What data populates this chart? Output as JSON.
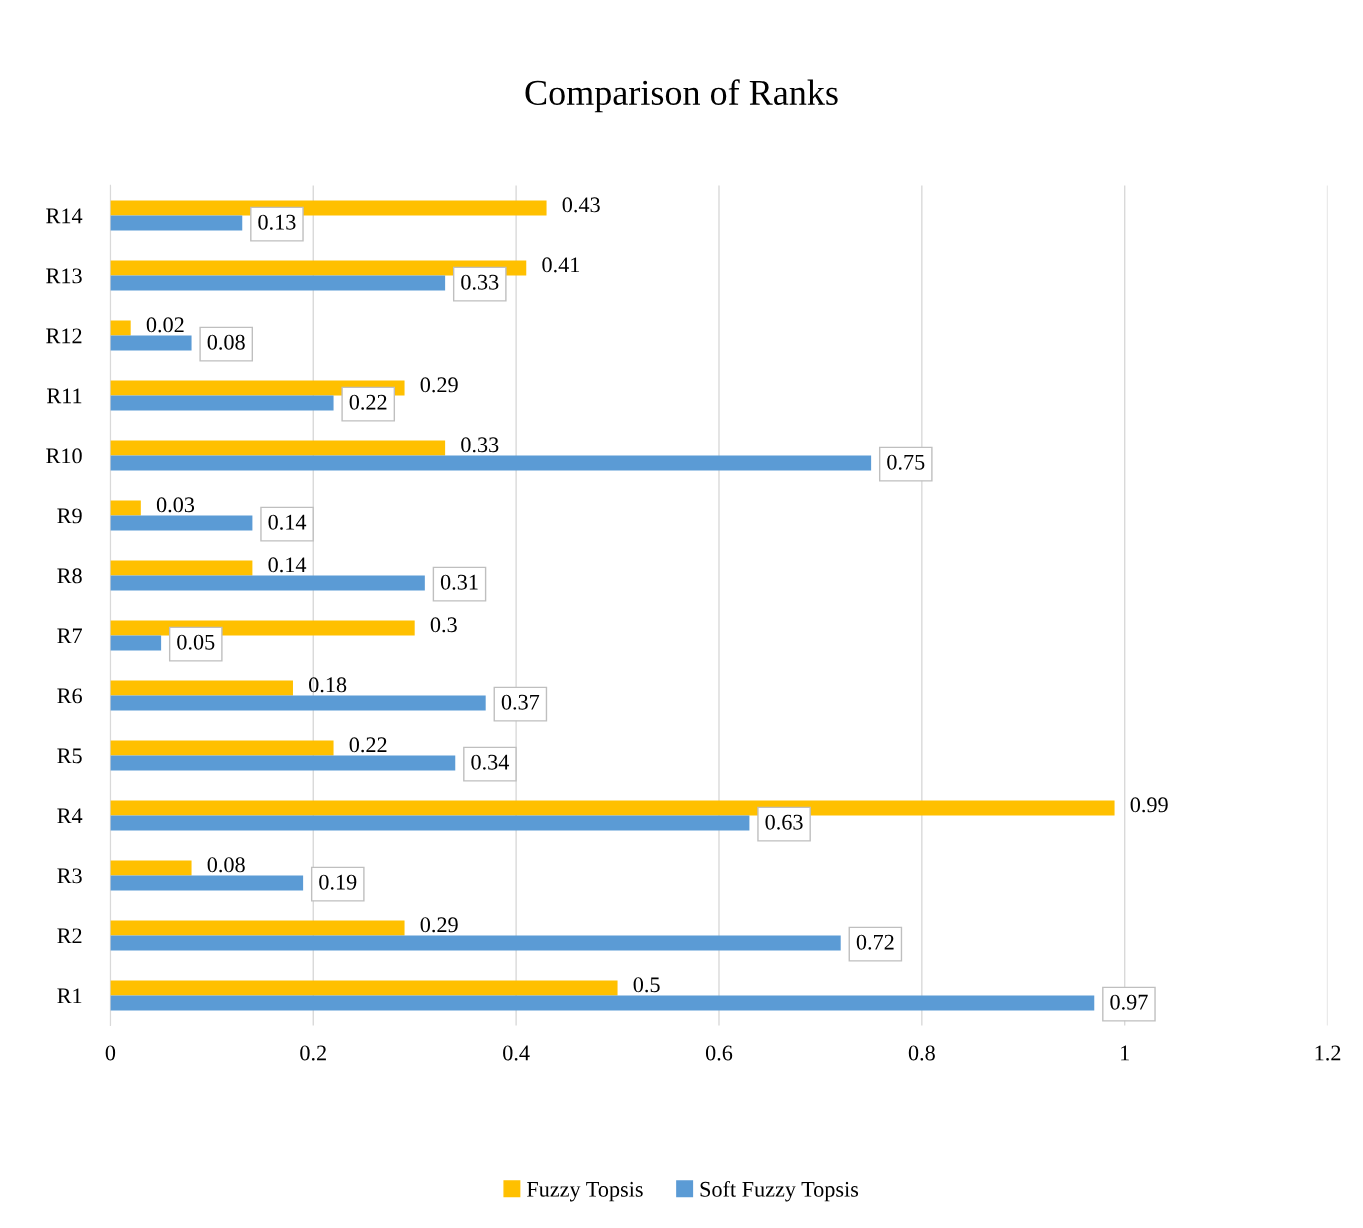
{
  "chart_data": {
    "type": "bar",
    "orientation": "horizontal",
    "title": "Comparison of Ranks",
    "categories": [
      "R14",
      "R13",
      "R12",
      "R11",
      "R10",
      "R9",
      "R8",
      "R7",
      "R6",
      "R5",
      "R4",
      "R3",
      "R2",
      "R1"
    ],
    "series": [
      {
        "name": "Fuzzy Topsis",
        "color": "#ffc000",
        "values": [
          0.43,
          0.41,
          0.02,
          0.29,
          0.33,
          0.03,
          0.14,
          0.3,
          0.18,
          0.22,
          0.99,
          0.08,
          0.29,
          0.5
        ]
      },
      {
        "name": "Soft Fuzzy Topsis",
        "color": "#5b9bd5",
        "values": [
          0.13,
          0.33,
          0.08,
          0.22,
          0.75,
          0.14,
          0.31,
          0.05,
          0.37,
          0.34,
          0.63,
          0.19,
          0.72,
          0.97
        ]
      }
    ],
    "xlim": [
      0,
      1.2
    ],
    "xticks": [
      0,
      0.2,
      0.4,
      0.6,
      0.8,
      1,
      1.2
    ],
    "grid": "x",
    "legend": "bottom",
    "data_labels": true
  }
}
